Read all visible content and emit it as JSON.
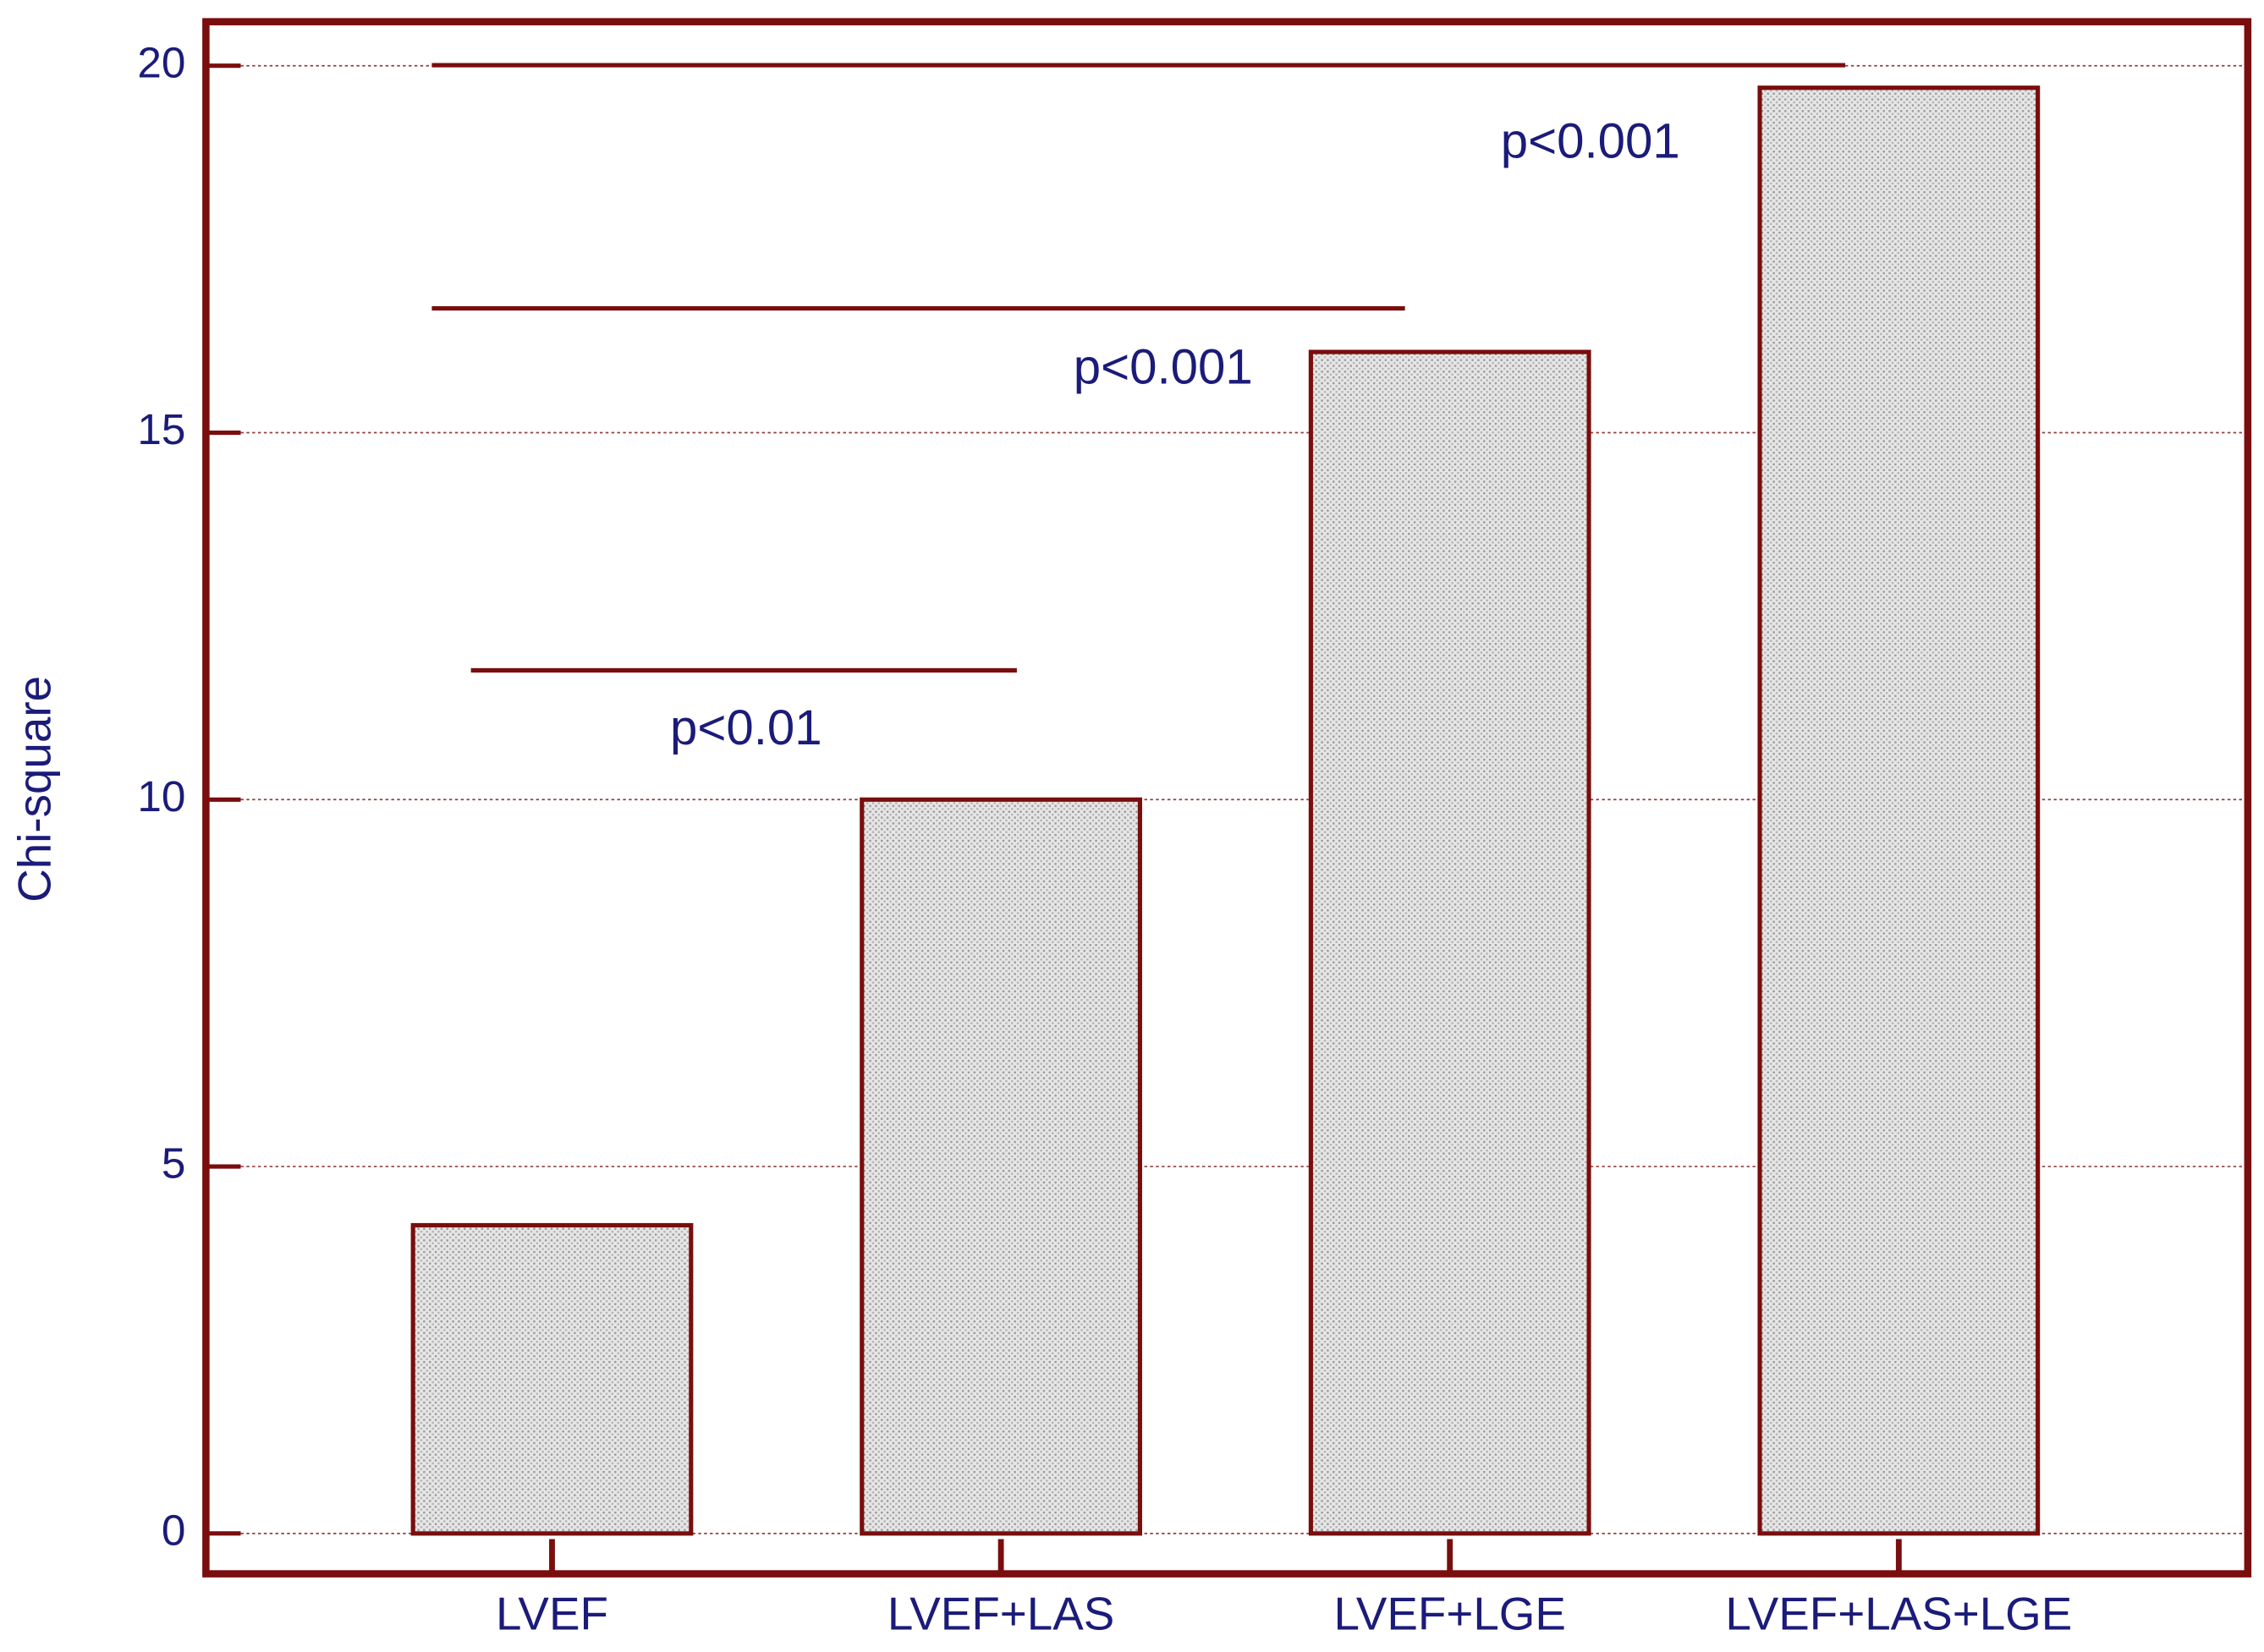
{
  "chart_data": {
    "type": "bar",
    "y_label": "Chi-square",
    "categories": [
      "LVEF",
      "LVEF+LAS",
      "LVEF+LGE",
      "LVEF+LAS+LGE"
    ],
    "values": [
      4.2,
      10,
      16.1,
      19.7
    ],
    "color": "#d9d9d9",
    "edge_color": "#7a0d0d",
    "ylim": [
      -0.55,
      20.6
    ],
    "yticks": [
      0,
      5,
      10,
      15,
      20
    ],
    "grid": true,
    "annotations": [
      "p<0.01",
      "p<0.001",
      "p<0.001"
    ]
  }
}
